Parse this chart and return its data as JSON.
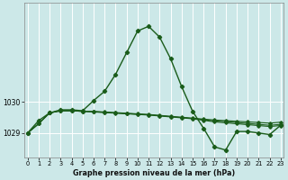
{
  "title": "Graphe pression niveau de la mer (hPa)",
  "bg_color": "#cce8e8",
  "grid_color": "#ffffff",
  "line_color": "#1a5c1a",
  "marker_color": "#1a5c1a",
  "x_ticks": [
    0,
    1,
    2,
    3,
    4,
    5,
    6,
    7,
    8,
    9,
    10,
    11,
    12,
    13,
    14,
    15,
    16,
    17,
    18,
    19,
    20,
    21,
    22,
    23
  ],
  "y_ticks": [
    1029,
    1030
  ],
  "xlim": [
    -0.3,
    23.3
  ],
  "ylim": [
    1028.2,
    1033.2
  ],
  "series_main": [
    1029.0,
    1029.4,
    1029.65,
    1029.75,
    1029.75,
    1029.72,
    1030.05,
    1030.35,
    1030.9,
    1031.6,
    1032.3,
    1032.45,
    1032.1,
    1031.4,
    1030.5,
    1029.7,
    1029.15,
    1028.55,
    1028.45,
    1029.05,
    1029.05,
    1029.0,
    1028.95,
    1029.25
  ],
  "series_flat1": [
    1029.0,
    1029.3,
    1029.65,
    1029.72,
    1029.72,
    1029.7,
    1029.7,
    1029.68,
    1029.66,
    1029.64,
    1029.62,
    1029.6,
    1029.57,
    1029.54,
    1029.51,
    1029.48,
    1029.45,
    1029.42,
    1029.4,
    1029.38,
    1029.36,
    1029.34,
    1029.32,
    1029.35
  ],
  "series_flat2": [
    1029.0,
    1029.3,
    1029.65,
    1029.72,
    1029.72,
    1029.7,
    1029.69,
    1029.67,
    1029.65,
    1029.63,
    1029.61,
    1029.59,
    1029.56,
    1029.53,
    1029.5,
    1029.47,
    1029.43,
    1029.39,
    1029.37,
    1029.34,
    1029.31,
    1029.28,
    1029.25,
    1029.28
  ],
  "series_flat3": [
    1029.0,
    1029.3,
    1029.65,
    1029.72,
    1029.72,
    1029.7,
    1029.68,
    1029.66,
    1029.64,
    1029.62,
    1029.6,
    1029.58,
    1029.55,
    1029.52,
    1029.49,
    1029.46,
    1029.41,
    1029.36,
    1029.33,
    1029.3,
    1029.27,
    1029.24,
    1029.21,
    1029.24
  ]
}
